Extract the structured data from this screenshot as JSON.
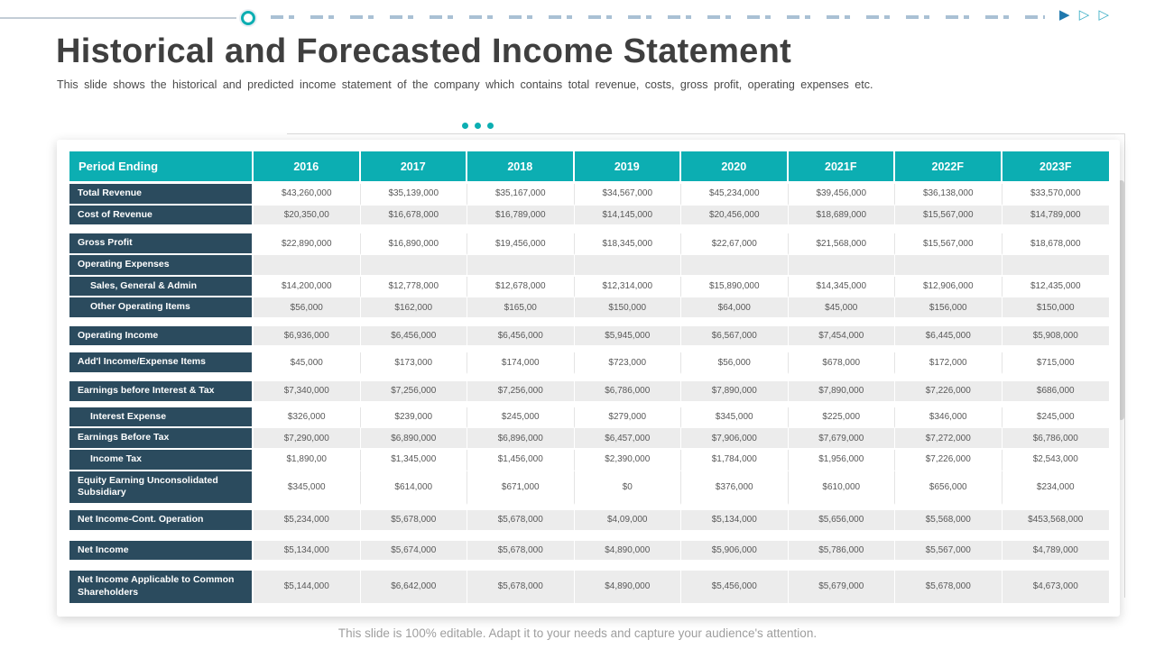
{
  "slide": {
    "title": "Historical and Forecasted Income Statement",
    "subtitle": "This slide shows the historical and predicted income statement of the company which contains total revenue,  costs, gross profit, operating expenses etc.",
    "footer": "This slide is 100% editable. Adapt it to your needs and capture your audience's attention."
  },
  "icons": {
    "play_solid": "▶",
    "play_outline_1": "▷",
    "play_outline_2": "▷"
  },
  "colors": {
    "teal_header": "#0CAEB2",
    "navy_label": "#2B4B5E",
    "stripe_gray": "#ECECEC",
    "arrow_blue": "#1F78AE",
    "arrow_teal": "#3AAEC6",
    "dash_blue": "#A9C0D4"
  },
  "table": {
    "header_label": "Period Ending",
    "columns": [
      "2016",
      "2017",
      "2018",
      "2019",
      "2020",
      "2021F",
      "2022F",
      "2023F"
    ],
    "rows": [
      {
        "label": "Total Revenue",
        "indent": false,
        "shade": false,
        "tall": false,
        "gap_after": 0,
        "values": [
          "$43,260,000",
          "$35,139,000",
          "$35,167,000",
          "$34,567,000",
          "$45,234,000",
          "$39,456,000",
          "$36,138,000",
          "$33,570,000"
        ]
      },
      {
        "label": "Cost of Revenue",
        "indent": false,
        "shade": true,
        "tall": false,
        "gap_after": 8,
        "values": [
          "$20,350,00",
          "$16,678,000",
          "$16,789,000",
          "$14,145,000",
          "$20,456,000",
          "$18,689,000",
          "$15,567,000",
          "$14,789,000"
        ]
      },
      {
        "label": "Gross Profit",
        "indent": false,
        "shade": false,
        "tall": false,
        "gap_after": 0,
        "values": [
          "$22,890,000",
          "$16,890,000",
          "$19,456,000",
          "$18,345,000",
          "$22,67,000",
          "$21,568,000",
          "$15,567,000",
          "$18,678,000"
        ]
      },
      {
        "label": "Operating Expenses",
        "indent": false,
        "shade": true,
        "tall": false,
        "gap_after": 0,
        "values": [
          "",
          "",
          "",
          "",
          "",
          "",
          "",
          ""
        ]
      },
      {
        "label": "Sales, General & Admin",
        "indent": true,
        "shade": false,
        "tall": false,
        "gap_after": 0,
        "values": [
          "$14,200,000",
          "$12,778,000",
          "$12,678,000",
          "$12,314,000",
          "$15,890,000",
          "$14,345,000",
          "$12,906,000",
          "$12,435,000"
        ]
      },
      {
        "label": "Other Operating Items",
        "indent": true,
        "shade": true,
        "tall": false,
        "gap_after": 8,
        "values": [
          "$56,000",
          "$162,000",
          "$165,00",
          "$150,000",
          "$64,000",
          "$45,000",
          "$156,000",
          "$150,000"
        ]
      },
      {
        "label": "Operating Income",
        "indent": false,
        "shade": true,
        "tall": false,
        "gap_after": 6,
        "values": [
          "$6,936,000",
          "$6,456,000",
          "$6,456,000",
          "$5,945,000",
          "$6,567,000",
          "$7,454,000",
          "$6,445,000",
          "$5,908,000"
        ]
      },
      {
        "label": "Add'l Income/Expense Items",
        "indent": false,
        "shade": false,
        "tall": false,
        "gap_after": 8,
        "values": [
          "$45,000",
          "$173,000",
          "$174,000",
          "$723,000",
          "$56,000",
          "$678,000",
          "$172,000",
          "$715,000"
        ]
      },
      {
        "label": "Earnings before Interest & Tax",
        "indent": false,
        "shade": true,
        "tall": false,
        "gap_after": 5,
        "values": [
          "$7,340,000",
          "$7,256,000",
          "$7,256,000",
          "$6,786,000",
          "$7,890,000",
          "$7,890,000",
          "$7,226,000",
          "$686,000"
        ]
      },
      {
        "label": "Interest Expense",
        "indent": true,
        "shade": false,
        "tall": false,
        "gap_after": 0,
        "values": [
          "$326,000",
          "$239,000",
          "$245,000",
          "$279,000",
          "$345,000",
          "$225,000",
          "$346,000",
          "$245,000"
        ]
      },
      {
        "label": "Earnings Before Tax",
        "indent": false,
        "shade": true,
        "tall": false,
        "gap_after": 0,
        "values": [
          "$7,290,000",
          "$6,890,000",
          "$6,896,000",
          "$6,457,000",
          "$7,906,000",
          "$7,679,000",
          "$7,272,000",
          "$6,786,000"
        ]
      },
      {
        "label": "Income Tax",
        "indent": true,
        "shade": false,
        "tall": false,
        "gap_after": 0,
        "values": [
          "$1,890,00",
          "$1,345,000",
          "$1,456,000",
          "$2,390,000",
          "$1,784,000",
          "$1,956,000",
          "$7,226,000",
          "$2,543,000"
        ]
      },
      {
        "label": "Equity Earning Unconsolidated Subsidiary",
        "indent": false,
        "shade": false,
        "tall": true,
        "gap_after": 6,
        "values": [
          "$345,000",
          "$614,000",
          "$671,000",
          "$0",
          "$376,000",
          "$610,000",
          "$656,000",
          "$234,000"
        ]
      },
      {
        "label": "Net Income-Cont. Operation",
        "indent": false,
        "shade": true,
        "tall": false,
        "gap_after": 10,
        "values": [
          "$5,234,000",
          "$5,678,000",
          "$5,678,000",
          "$4,09,000",
          "$5,134,000",
          "$5,656,000",
          "$5,568,000",
          "$453,568,000"
        ]
      },
      {
        "label": "Net Income",
        "indent": false,
        "shade": true,
        "tall": false,
        "gap_after": 10,
        "values": [
          "$5,134,000",
          "$5,674,000",
          "$5,678,000",
          "$4,890,000",
          "$5,906,000",
          "$5,786,000",
          "$5,567,000",
          "$4,789,000"
        ]
      },
      {
        "label": "Net Income Applicable to Common Shareholders",
        "indent": false,
        "shade": true,
        "tall": true,
        "gap_after": 0,
        "values": [
          "$5,144,000",
          "$6,642,000",
          "$5,678,000",
          "$4,890,000",
          "$5,456,000",
          "$5,679,000",
          "$5,678,000",
          "$4,673,000"
        ]
      }
    ]
  }
}
